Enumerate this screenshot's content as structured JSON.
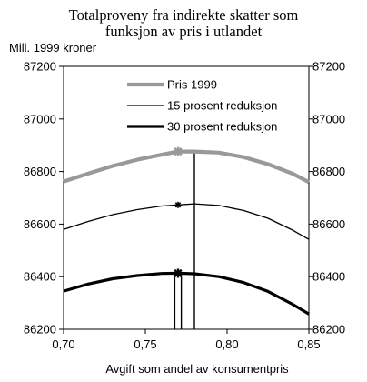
{
  "chart_data": {
    "type": "line",
    "title_lines": [
      "Totalproveny fra indirekte skatter som",
      "funksjon av pris i utlandet"
    ],
    "unit_label": "Mill. 1999 kroner",
    "xlabel": "Avgift som andel av konsumentpris",
    "xlim": [
      0.7,
      0.85
    ],
    "ylim": [
      86200,
      87200
    ],
    "x_ticks": [
      0.7,
      0.75,
      0.8,
      0.85
    ],
    "x_tick_labels": [
      "0,70",
      "0,75",
      "0,80",
      "0,85"
    ],
    "y_ticks": [
      86200,
      86400,
      86600,
      86800,
      87000,
      87200
    ],
    "y_tick_labels": [
      "86200",
      "86400",
      "86600",
      "86800",
      "87000",
      "87200"
    ],
    "legend_position": "top-center",
    "series": [
      {
        "name": "Pris 1999",
        "color": "#999999",
        "style": "thick-gray",
        "x": [
          0.7,
          0.715,
          0.73,
          0.745,
          0.76,
          0.77,
          0.78,
          0.795,
          0.81,
          0.825,
          0.84,
          0.85
        ],
        "y": [
          86762,
          86792,
          86821,
          86845,
          86864,
          86876,
          86876,
          86872,
          86855,
          86828,
          86792,
          86760
        ],
        "marker": {
          "x": 0.77,
          "y": 86876
        }
      },
      {
        "name": "15 prosent reduksjon",
        "color": "#000000",
        "style": "thin-black",
        "x": [
          0.7,
          0.715,
          0.73,
          0.745,
          0.76,
          0.77,
          0.78,
          0.795,
          0.81,
          0.825,
          0.84,
          0.85
        ],
        "y": [
          86580,
          86610,
          86636,
          86655,
          86669,
          86673,
          86677,
          86671,
          86652,
          86622,
          86577,
          86542
        ],
        "marker": {
          "x": 0.77,
          "y": 86673
        }
      },
      {
        "name": "30 prosent reduksjon",
        "color": "#000000",
        "style": "thick-black",
        "x": [
          0.7,
          0.715,
          0.73,
          0.745,
          0.76,
          0.77,
          0.78,
          0.795,
          0.81,
          0.825,
          0.84,
          0.85
        ],
        "y": [
          86345,
          86372,
          86392,
          86404,
          86412,
          86413,
          86411,
          86400,
          86378,
          86344,
          86295,
          86258
        ],
        "marker": {
          "x": 0.77,
          "y": 86413
        }
      }
    ],
    "reference_lines": [
      {
        "x": 0.78,
        "y_top": 86876
      },
      {
        "x": 0.768,
        "y_top": 86413
      },
      {
        "x": 0.772,
        "y_top": 86413
      }
    ]
  }
}
